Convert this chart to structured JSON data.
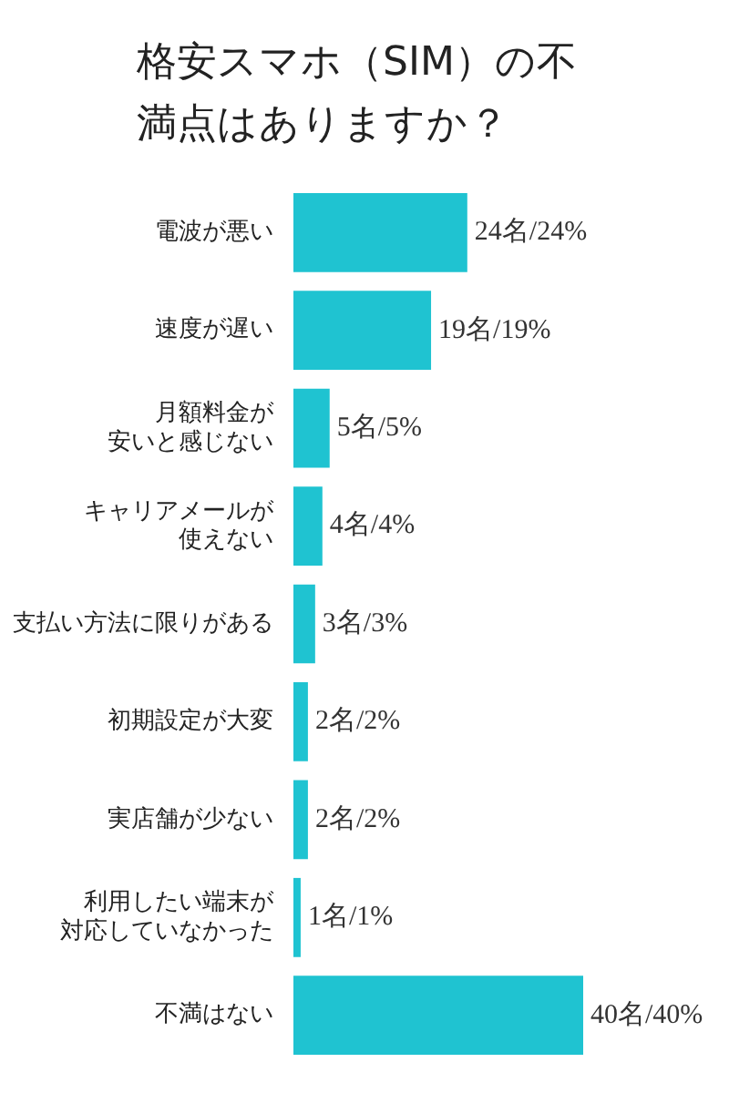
{
  "chart_data": {
    "type": "bar",
    "orientation": "horizontal",
    "title": "格安スマホ（SIM）の不満点はありますか？",
    "categories": [
      "電波が悪い",
      "速度が遅い",
      "月額料金が安いと感じない",
      "キャリアメールが使えない",
      "支払い方法に限りがある",
      "初期設定が大変",
      "実店舗が少ない",
      "利用したい端末が対応していなかった",
      "不満はない"
    ],
    "values": [
      24,
      19,
      5,
      4,
      3,
      2,
      2,
      1,
      40
    ],
    "value_labels": [
      "24名/24%",
      "19名/19%",
      "5名/5%",
      "4名/4%",
      "3名/3%",
      "2名/2%",
      "2名/2%",
      "1名/1%",
      "40名/40%"
    ],
    "color": "#1fc3d1",
    "grid": false,
    "legend": false
  }
}
